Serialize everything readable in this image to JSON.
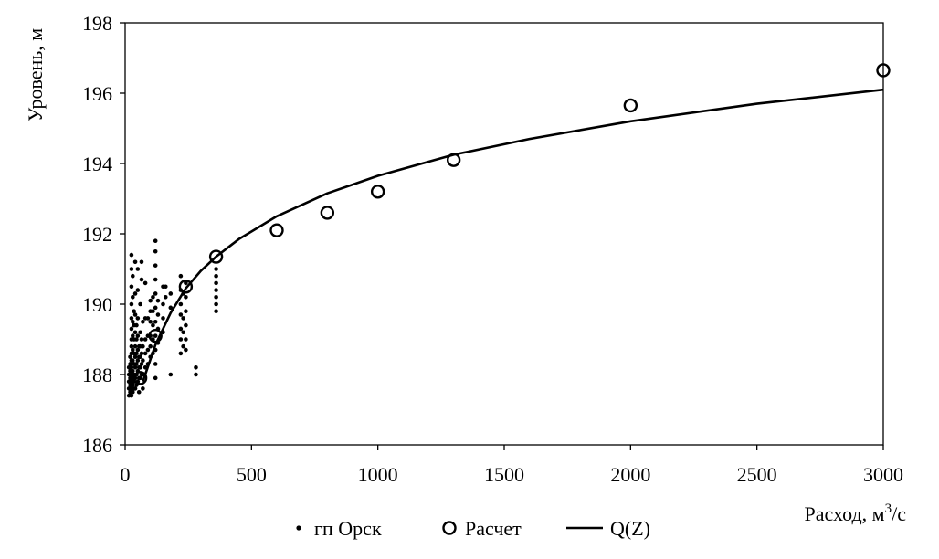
{
  "chart_data": {
    "type": "scatter",
    "xlabel": "Расход, м",
    "xlabel_sup": "3",
    "xlabel_tail": "/с",
    "ylabel": "Уровень, м",
    "xlim": [
      0,
      3000
    ],
    "ylim": [
      186,
      198
    ],
    "x_ticks": [
      0,
      500,
      1000,
      1500,
      2000,
      2500,
      3000
    ],
    "y_ticks": [
      186,
      188,
      190,
      192,
      194,
      196,
      198
    ],
    "grid": false,
    "legend_position": "bottom",
    "series": [
      {
        "name": "гп Орск",
        "kind": "scatter-dots",
        "points": [
          [
            15,
            187.4
          ],
          [
            15,
            187.6
          ],
          [
            15,
            187.8
          ],
          [
            15,
            188.0
          ],
          [
            15,
            188.2
          ],
          [
            20,
            187.5
          ],
          [
            20,
            187.7
          ],
          [
            20,
            187.9
          ],
          [
            20,
            188.1
          ],
          [
            20,
            188.3
          ],
          [
            20,
            188.5
          ],
          [
            25,
            187.4
          ],
          [
            25,
            187.6
          ],
          [
            25,
            187.8
          ],
          [
            25,
            188.0
          ],
          [
            25,
            188.2
          ],
          [
            25,
            188.4
          ],
          [
            25,
            188.6
          ],
          [
            25,
            188.8
          ],
          [
            25,
            189.0
          ],
          [
            25,
            189.3
          ],
          [
            25,
            189.6
          ],
          [
            25,
            190.0
          ],
          [
            25,
            190.5
          ],
          [
            25,
            191.0
          ],
          [
            25,
            191.4
          ],
          [
            30,
            187.5
          ],
          [
            30,
            187.7
          ],
          [
            30,
            187.9
          ],
          [
            30,
            188.1
          ],
          [
            30,
            188.4
          ],
          [
            30,
            188.7
          ],
          [
            30,
            189.1
          ],
          [
            30,
            189.5
          ],
          [
            30,
            190.2
          ],
          [
            30,
            190.8
          ],
          [
            35,
            187.6
          ],
          [
            35,
            187.8
          ],
          [
            35,
            188.0
          ],
          [
            35,
            188.3
          ],
          [
            35,
            188.6
          ],
          [
            35,
            189.0
          ],
          [
            35,
            189.4
          ],
          [
            35,
            189.8
          ],
          [
            40,
            187.6
          ],
          [
            40,
            187.9
          ],
          [
            40,
            188.2
          ],
          [
            40,
            188.5
          ],
          [
            40,
            188.8
          ],
          [
            40,
            189.2
          ],
          [
            40,
            189.7
          ],
          [
            40,
            190.3
          ],
          [
            40,
            191.2
          ],
          [
            45,
            187.7
          ],
          [
            45,
            188.0
          ],
          [
            45,
            188.3
          ],
          [
            45,
            188.6
          ],
          [
            45,
            189.0
          ],
          [
            45,
            189.4
          ],
          [
            50,
            187.8
          ],
          [
            50,
            188.1
          ],
          [
            50,
            188.4
          ],
          [
            50,
            188.7
          ],
          [
            50,
            189.1
          ],
          [
            50,
            189.6
          ],
          [
            50,
            190.4
          ],
          [
            50,
            191.0
          ],
          [
            55,
            187.5
          ],
          [
            55,
            187.9
          ],
          [
            55,
            188.2
          ],
          [
            55,
            188.5
          ],
          [
            55,
            188.8
          ],
          [
            60,
            187.9
          ],
          [
            60,
            188.2
          ],
          [
            60,
            188.5
          ],
          [
            60,
            188.8
          ],
          [
            60,
            189.2
          ],
          [
            60,
            190.0
          ],
          [
            65,
            188.0
          ],
          [
            65,
            188.3
          ],
          [
            65,
            188.6
          ],
          [
            65,
            189.0
          ],
          [
            65,
            190.7
          ],
          [
            65,
            191.2
          ],
          [
            70,
            187.6
          ],
          [
            70,
            188.0
          ],
          [
            70,
            188.4
          ],
          [
            70,
            188.8
          ],
          [
            70,
            189.5
          ],
          [
            80,
            188.2
          ],
          [
            80,
            188.6
          ],
          [
            80,
            189.0
          ],
          [
            80,
            189.6
          ],
          [
            80,
            190.6
          ],
          [
            90,
            188.3
          ],
          [
            90,
            188.7
          ],
          [
            90,
            189.1
          ],
          [
            90,
            189.6
          ],
          [
            100,
            188.5
          ],
          [
            100,
            188.8
          ],
          [
            100,
            189.1
          ],
          [
            100,
            189.5
          ],
          [
            100,
            189.8
          ],
          [
            100,
            190.1
          ],
          [
            110,
            188.6
          ],
          [
            110,
            189.0
          ],
          [
            110,
            189.4
          ],
          [
            110,
            189.8
          ],
          [
            110,
            190.2
          ],
          [
            120,
            187.9
          ],
          [
            120,
            188.3
          ],
          [
            120,
            188.7
          ],
          [
            120,
            189.1
          ],
          [
            120,
            189.5
          ],
          [
            120,
            189.9
          ],
          [
            120,
            190.3
          ],
          [
            120,
            190.7
          ],
          [
            120,
            191.1
          ],
          [
            120,
            191.5
          ],
          [
            120,
            191.8
          ],
          [
            130,
            188.9
          ],
          [
            130,
            189.3
          ],
          [
            130,
            189.7
          ],
          [
            130,
            190.1
          ],
          [
            150,
            189.2
          ],
          [
            150,
            189.6
          ],
          [
            150,
            190.0
          ],
          [
            150,
            190.5
          ],
          [
            160,
            190.2
          ],
          [
            160,
            190.5
          ],
          [
            180,
            188.0
          ],
          [
            180,
            189.9
          ],
          [
            180,
            190.3
          ],
          [
            220,
            188.6
          ],
          [
            220,
            189.0
          ],
          [
            220,
            189.3
          ],
          [
            220,
            189.7
          ],
          [
            220,
            190.0
          ],
          [
            220,
            190.4
          ],
          [
            220,
            190.8
          ],
          [
            230,
            188.8
          ],
          [
            230,
            189.2
          ],
          [
            230,
            189.6
          ],
          [
            230,
            190.3
          ],
          [
            240,
            188.7
          ],
          [
            240,
            189.0
          ],
          [
            240,
            189.4
          ],
          [
            240,
            189.8
          ],
          [
            240,
            190.2
          ],
          [
            240,
            190.6
          ],
          [
            280,
            188.0
          ],
          [
            280,
            188.2
          ],
          [
            360,
            189.8
          ],
          [
            360,
            190.0
          ],
          [
            360,
            190.2
          ],
          [
            360,
            190.4
          ],
          [
            360,
            190.6
          ],
          [
            360,
            190.8
          ],
          [
            360,
            191.0
          ]
        ]
      },
      {
        "name": "Расчет",
        "kind": "open-circles",
        "points": [
          [
            60,
            187.9
          ],
          [
            120,
            189.1
          ],
          [
            240,
            190.5
          ],
          [
            360,
            191.35
          ],
          [
            600,
            192.1
          ],
          [
            800,
            192.6
          ],
          [
            1000,
            193.2
          ],
          [
            1300,
            194.1
          ],
          [
            2000,
            195.65
          ],
          [
            3000,
            196.65
          ]
        ]
      },
      {
        "name": "Q(Z)",
        "kind": "line",
        "points": [
          [
            70,
            187.8
          ],
          [
            120,
            188.85
          ],
          [
            180,
            189.75
          ],
          [
            240,
            190.45
          ],
          [
            300,
            190.95
          ],
          [
            360,
            191.35
          ],
          [
            450,
            191.85
          ],
          [
            600,
            192.5
          ],
          [
            800,
            193.15
          ],
          [
            1000,
            193.65
          ],
          [
            1300,
            194.25
          ],
          [
            1600,
            194.7
          ],
          [
            2000,
            195.2
          ],
          [
            2500,
            195.7
          ],
          [
            3000,
            196.1
          ]
        ]
      }
    ]
  }
}
